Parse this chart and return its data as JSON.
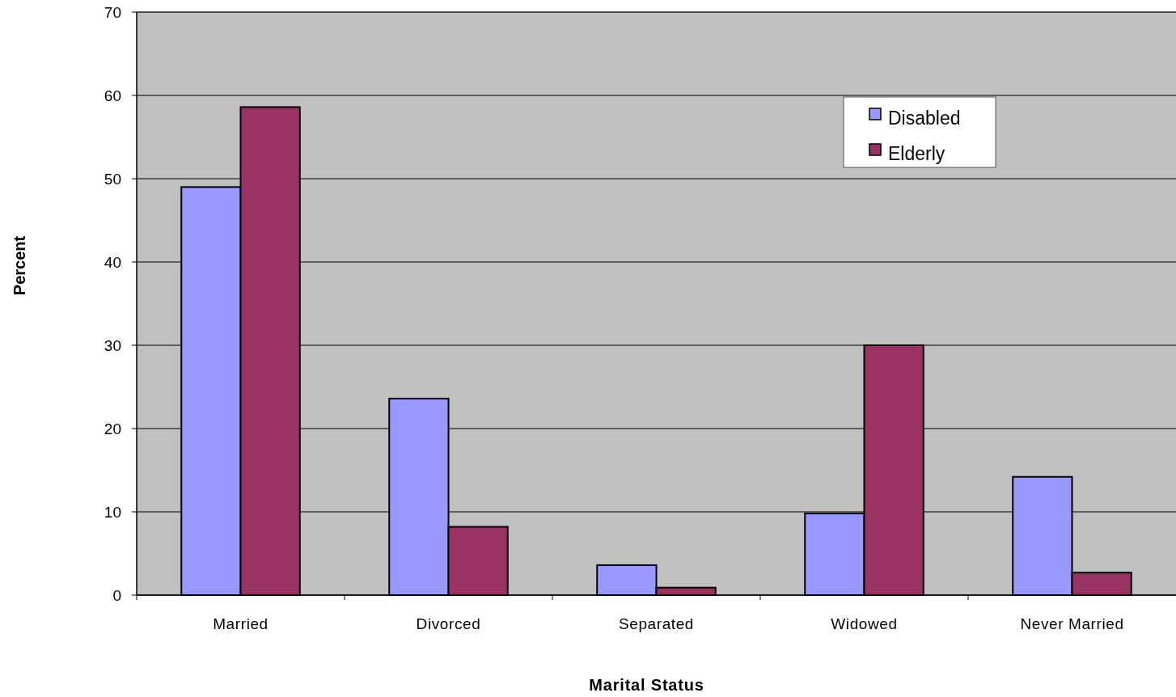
{
  "chart_data": {
    "type": "bar",
    "xlabel": "Marital Status",
    "ylabel": "Percent",
    "categories": [
      "Married",
      "Divorced",
      "Separated",
      "Widowed",
      "Never Married"
    ],
    "series": [
      {
        "name": "Disabled",
        "color": "#9999ff",
        "values": [
          49,
          23.6,
          3.6,
          9.8,
          14.2
        ]
      },
      {
        "name": "Elderly",
        "color": "#993366",
        "values": [
          58.6,
          8.2,
          0.9,
          30,
          2.7
        ]
      }
    ],
    "ylim": [
      0,
      70
    ],
    "yticks": [
      0,
      10,
      20,
      30,
      40,
      50,
      60,
      70
    ],
    "grid": "y",
    "legend": "top right"
  }
}
